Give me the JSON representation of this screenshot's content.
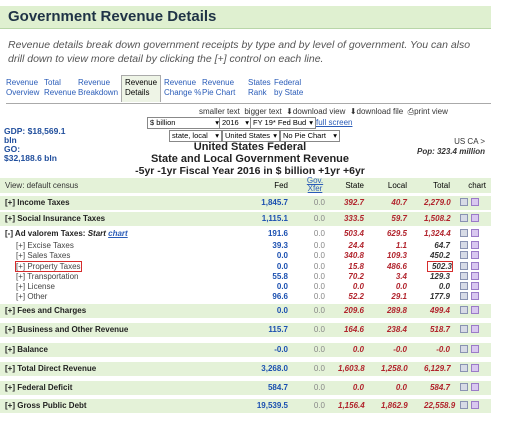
{
  "page": {
    "title": "Government Revenue Details",
    "description": "Revenue details break down government receipts by type and by level of government. You can also drill down to view more detail by clicking the [+] control on each line."
  },
  "tabs": [
    {
      "l1": "Revenue",
      "l2": "Overview"
    },
    {
      "l1": "Total",
      "l2": "Revenue"
    },
    {
      "l1": "Revenue",
      "l2": "Breakdown"
    },
    {
      "l1": "Revenue",
      "l2": "Details"
    },
    {
      "l1": "Revenue",
      "l2": "Change %"
    },
    {
      "l1": "Revenue",
      "l2": "Pie Chart"
    },
    {
      "l1": "States",
      "l2": "Rank"
    },
    {
      "l1": "Federal",
      "l2": "by State"
    }
  ],
  "toolbar": {
    "smaller_text": "smaller text",
    "bigger_text": "bigger text",
    "download_view": "download view",
    "download_file": "download file",
    "print_view": "print view",
    "full_screen": "full screen"
  },
  "selects": {
    "units": "$ billion",
    "year": "2016",
    "fy": "FY 19* Fed Bud",
    "level": "state, local",
    "area": "United States",
    "chart": "No Pie Chart"
  },
  "info": {
    "gdp": "GDP: $18,569.1",
    "gdp_unit": "bln",
    "go": "GO:",
    "go_value": "$32,188.6 bln",
    "us_ca": "US CA >",
    "pop": "Pop: 323.4 million"
  },
  "heading": {
    "line1": "United States Federal",
    "line2": "State and Local Government Revenue",
    "line3": "-5yr -1yr  Fiscal Year 2016 in $ billion  +1yr +6yr"
  },
  "columns": {
    "view": "View: default census",
    "fed": "Fed",
    "gov1": "Gov.",
    "gov2": "Xfer",
    "state": "State",
    "local": "Local",
    "total": "Total",
    "chart": "chart"
  },
  "rows": [
    {
      "label": "[+] Income Taxes",
      "fed": "1,845.7",
      "xfer": "0.0",
      "state": "392.7",
      "local": "40.7",
      "total": "2,279.0"
    },
    {
      "label": "[+] Social Insurance Taxes",
      "fed": "1,115.1",
      "xfer": "0.0",
      "state": "333.5",
      "local": "59.7",
      "total": "1,508.2"
    },
    {
      "label": "[-] Ad valorem Taxes:",
      "start": "Start",
      "chart_link": "chart",
      "fed": "191.6",
      "xfer": "0.0",
      "state": "503.4",
      "local": "629.5",
      "total": "1,324.4"
    },
    {
      "label": "[+] Excise Taxes",
      "fed": "39.3",
      "xfer": "0.0",
      "state": "24.4",
      "local": "1.1",
      "total": "64.7"
    },
    {
      "label": "[+] Sales Taxes",
      "fed": "0.0",
      "xfer": "0.0",
      "state": "340.8",
      "local": "109.3",
      "total": "450.2"
    },
    {
      "label": "[+] Property Taxes",
      "fed": "0.0",
      "xfer": "0.0",
      "state": "15.8",
      "local": "486.6",
      "total": "502.3"
    },
    {
      "label": "[+] Transportation",
      "fed": "55.8",
      "xfer": "0.0",
      "state": "70.2",
      "local": "3.4",
      "total": "129.3"
    },
    {
      "label": "[+] License",
      "fed": "0.0",
      "xfer": "0.0",
      "state": "0.0",
      "local": "0.0",
      "total": "0.0"
    },
    {
      "label": "[+] Other",
      "fed": "96.6",
      "xfer": "0.0",
      "state": "52.2",
      "local": "29.1",
      "total": "177.9"
    },
    {
      "label": "[+] Fees and Charges",
      "fed": "0.0",
      "xfer": "0.0",
      "state": "209.6",
      "local": "289.8",
      "total": "499.4"
    },
    {
      "label": "[+] Business and Other Revenue",
      "fed": "115.7",
      "xfer": "0.0",
      "state": "164.6",
      "local": "238.4",
      "total": "518.7"
    },
    {
      "label": "[+] Balance",
      "fed": "-0.0",
      "xfer": "0.0",
      "state": "0.0",
      "local": "-0.0",
      "total": "-0.0"
    },
    {
      "label": "[+] Total Direct Revenue",
      "fed": "3,268.0",
      "xfer": "0.0",
      "state": "1,603.8",
      "local": "1,258.0",
      "total": "6,129.7"
    },
    {
      "label": "[+] Federal Deficit",
      "fed": "584.7",
      "xfer": "0.0",
      "state": "0.0",
      "local": "0.0",
      "total": "584.7"
    },
    {
      "label": "[+] Gross Public Debt",
      "fed": "19,539.5",
      "xfer": "0.0",
      "state": "1,156.4",
      "local": "1,862.9",
      "total": "22,558.9"
    }
  ],
  "colors": {
    "title_bg": "#dff0d0",
    "row_green": "#e4f2d8",
    "accent_blue": "#1a4fb0",
    "accent_red": "#b1232c",
    "highlight": "#d62d2d"
  }
}
